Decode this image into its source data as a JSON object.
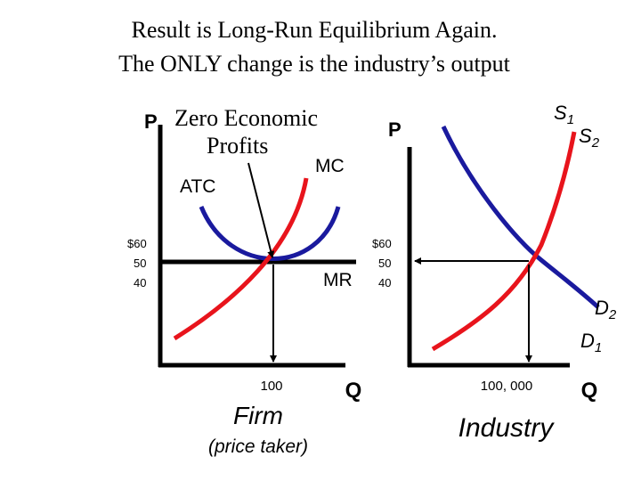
{
  "title": {
    "line1": "Result is Long-Run Equilibrium Again.",
    "line2": "The ONLY change is the industry’s output"
  },
  "firm": {
    "y_axis_label": "P",
    "annotation_line1": "Zero Economic",
    "annotation_line2": "Profits",
    "mc_label": "MC",
    "atc_label": "ATC",
    "mr_label": "MR",
    "price_ticks": [
      "$60",
      "50",
      "40"
    ],
    "quantity_tick": "100",
    "x_axis_label": "Q",
    "caption": "Firm",
    "subcaption": "(price taker)"
  },
  "industry": {
    "y_axis_label": "P",
    "supply1_label": "S",
    "supply1_sub": "1",
    "supply2_label": "S",
    "supply2_sub": "2",
    "demand2_label": "D",
    "demand2_sub": "2",
    "demand1_label": "D",
    "demand1_sub": "1",
    "price_ticks": [
      "$60",
      "50",
      "40"
    ],
    "quantity_tick": "100, 000",
    "x_axis_label": "Q",
    "caption": "Industry"
  },
  "colors": {
    "axis": "#000000",
    "red_curve": "#e8141c",
    "blue_curve": "#1a1a9e",
    "text": "#000000"
  }
}
